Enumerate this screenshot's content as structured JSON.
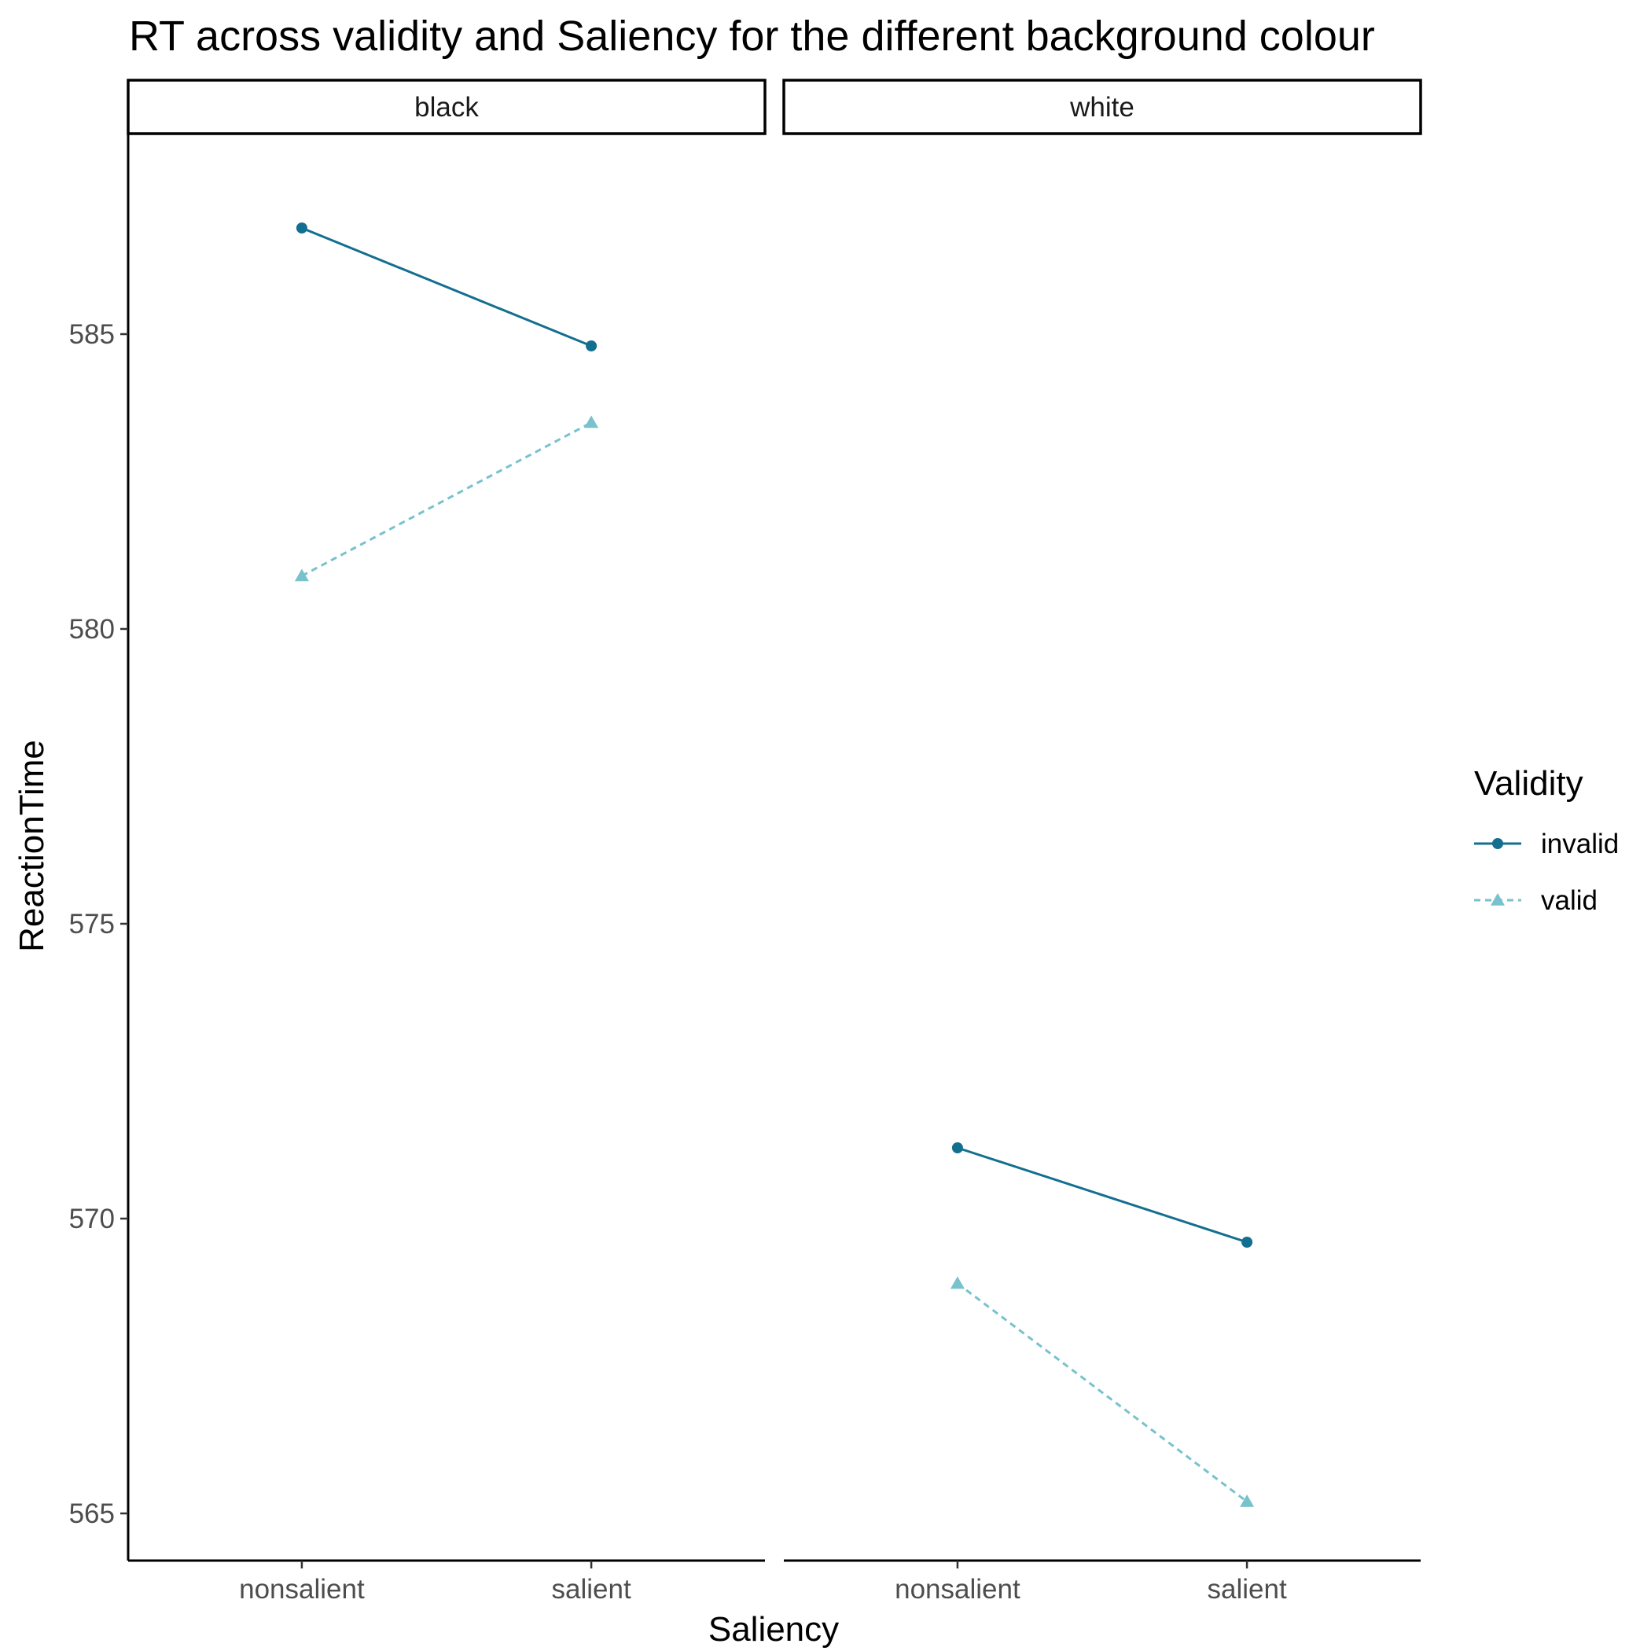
{
  "chart_data": {
    "type": "line",
    "title": "RT across validity and Saliency for the different background colour",
    "xlabel": "Saliency",
    "ylabel": "ReactionTime",
    "categories": [
      "nonsalient",
      "salient"
    ],
    "ylim": [
      564.2,
      588.4
    ],
    "yticks": [
      565,
      570,
      575,
      580,
      585
    ],
    "grid": false,
    "legend": {
      "title": "Validity",
      "position": "right",
      "entries": [
        "invalid",
        "valid"
      ]
    },
    "colors": {
      "invalid": "#136f8f",
      "valid": "#77c2cc"
    },
    "facets": [
      {
        "label": "black",
        "series": [
          {
            "name": "invalid",
            "values": [
              586.8,
              584.8
            ]
          },
          {
            "name": "valid",
            "values": [
              580.9,
              583.5
            ]
          }
        ]
      },
      {
        "label": "white",
        "series": [
          {
            "name": "invalid",
            "values": [
              571.2,
              569.6
            ]
          },
          {
            "name": "valid",
            "values": [
              568.9,
              565.2
            ]
          }
        ]
      }
    ]
  }
}
